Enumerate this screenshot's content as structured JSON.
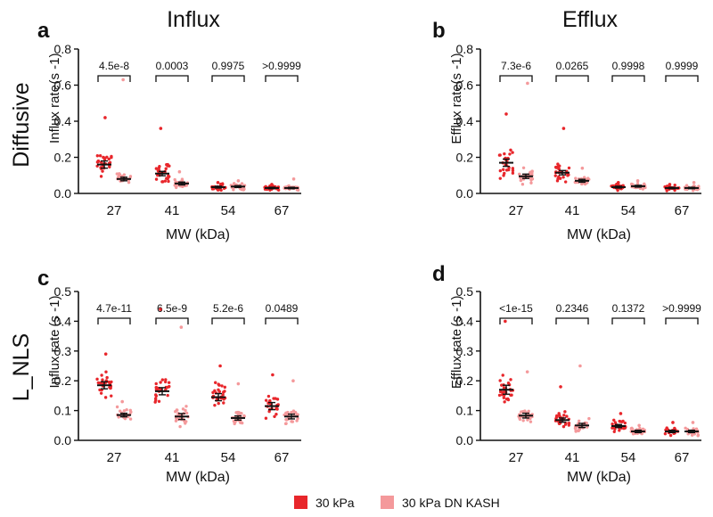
{
  "figure": {
    "column_titles": [
      "Influx",
      "Efflux"
    ],
    "row_labels": [
      "Diffusive",
      "L_NLS"
    ],
    "legend": [
      {
        "label": "30  kPa",
        "color": "#e8262b"
      },
      {
        "label": "30  kPa DN KASH",
        "color": "#f4999b"
      }
    ],
    "colors": {
      "series1": "#e8262b",
      "series2": "#f4999b",
      "axis": "#111111",
      "mean_bar": "#111111"
    }
  },
  "chart_data": [
    {
      "panel": "a",
      "type": "scatter",
      "title": "Influx",
      "row": "Diffusive",
      "ylabel": "Influx  rate",
      "yunit": "(s -1)",
      "xlabel": "MW  (kDa)",
      "categories": [
        "27",
        "41",
        "54",
        "67"
      ],
      "ylim": [
        0,
        0.8
      ],
      "yticks": [
        0.0,
        0.2,
        0.4,
        0.6,
        0.8
      ],
      "yticklabels": [
        "0.0",
        "0.2",
        "0.4",
        "0.6",
        "0.8"
      ],
      "series": [
        {
          "name": "30  kPa",
          "means": [
            0.16,
            0.11,
            0.035,
            0.03
          ],
          "sems": [
            0.02,
            0.012,
            0.005,
            0.004
          ],
          "spreads": [
            0.1,
            0.07,
            0.02,
            0.015
          ],
          "max_points": [
            0.42,
            0.36,
            0.06,
            0.05
          ]
        },
        {
          "name": "30  kPa DN KASH",
          "means": [
            0.08,
            0.055,
            0.038,
            0.03
          ],
          "sems": [
            0.01,
            0.008,
            0.005,
            0.004
          ],
          "spreads": [
            0.035,
            0.025,
            0.02,
            0.015
          ],
          "max_points": [
            0.63,
            0.12,
            0.07,
            0.08
          ]
        }
      ],
      "pvalues": [
        "4.5e-8",
        "0.0003",
        "0.9975",
        ">0.9999"
      ]
    },
    {
      "panel": "b",
      "type": "scatter",
      "title": "Efflux",
      "row": "Diffusive",
      "ylabel": "Efflux  rate",
      "yunit": "(s -1)",
      "xlabel": "MW  (kDa)",
      "categories": [
        "27",
        "41",
        "54",
        "67"
      ],
      "ylim": [
        0,
        0.8
      ],
      "yticks": [
        0.0,
        0.2,
        0.4,
        0.6,
        0.8
      ],
      "yticklabels": [
        "0.0",
        "0.2",
        "0.4",
        "0.6",
        "0.8"
      ],
      "series": [
        {
          "name": "30  kPa",
          "means": [
            0.17,
            0.115,
            0.035,
            0.03
          ],
          "sems": [
            0.02,
            0.012,
            0.005,
            0.004
          ],
          "spreads": [
            0.1,
            0.06,
            0.02,
            0.015
          ],
          "max_points": [
            0.44,
            0.36,
            0.06,
            0.05
          ]
        },
        {
          "name": "30  kPa DN KASH",
          "means": [
            0.095,
            0.07,
            0.04,
            0.03
          ],
          "sems": [
            0.012,
            0.008,
            0.005,
            0.004
          ],
          "spreads": [
            0.045,
            0.03,
            0.02,
            0.015
          ],
          "max_points": [
            0.61,
            0.14,
            0.07,
            0.06
          ]
        }
      ],
      "pvalues": [
        "7.3e-6",
        "0.0265",
        "0.9998",
        "0.9999"
      ]
    },
    {
      "panel": "c",
      "type": "scatter",
      "title": "",
      "row": "L_NLS",
      "ylabel": "Influx  rate",
      "yunit": "(s -1)",
      "xlabel": "MW  (kDa)",
      "categories": [
        "27",
        "41",
        "54",
        "67"
      ],
      "ylim": [
        0,
        0.5
      ],
      "yticks": [
        0.0,
        0.1,
        0.2,
        0.3,
        0.4,
        0.5
      ],
      "yticklabels": [
        "0.0",
        "0.1",
        "0.2",
        "0.3",
        "0.4",
        "0.5"
      ],
      "series": [
        {
          "name": "30  kPa",
          "means": [
            0.185,
            0.165,
            0.145,
            0.115
          ],
          "sems": [
            0.012,
            0.012,
            0.012,
            0.012
          ],
          "spreads": [
            0.05,
            0.06,
            0.05,
            0.05
          ],
          "max_points": [
            0.29,
            0.44,
            0.25,
            0.22
          ]
        },
        {
          "name": "30  kPa DN KASH",
          "means": [
            0.085,
            0.08,
            0.075,
            0.08
          ],
          "sems": [
            0.006,
            0.01,
            0.007,
            0.008
          ],
          "spreads": [
            0.025,
            0.04,
            0.03,
            0.035
          ],
          "max_points": [
            0.13,
            0.38,
            0.19,
            0.2
          ]
        }
      ],
      "pvalues": [
        "4.7e-11",
        "6.5e-9",
        "5.2e-6",
        "0.0489"
      ]
    },
    {
      "panel": "d",
      "type": "scatter",
      "title": "",
      "row": "L_NLS",
      "ylabel": "Efflux  rate",
      "yunit": "(s -1)",
      "xlabel": "MW  (kDa)",
      "categories": [
        "27",
        "41",
        "54",
        "67"
      ],
      "ylim": [
        0,
        0.5
      ],
      "yticks": [
        0.0,
        0.1,
        0.2,
        0.3,
        0.4,
        0.5
      ],
      "yticklabels": [
        "0.0",
        "0.1",
        "0.2",
        "0.3",
        "0.4",
        "0.5"
      ],
      "series": [
        {
          "name": "30  kPa",
          "means": [
            0.17,
            0.068,
            0.048,
            0.03
          ],
          "sems": [
            0.015,
            0.007,
            0.005,
            0.004
          ],
          "spreads": [
            0.06,
            0.03,
            0.02,
            0.015
          ],
          "max_points": [
            0.4,
            0.18,
            0.09,
            0.06
          ]
        },
        {
          "name": "30  kPa DN KASH",
          "means": [
            0.083,
            0.05,
            0.03,
            0.03
          ],
          "sems": [
            0.008,
            0.007,
            0.004,
            0.004
          ],
          "spreads": [
            0.03,
            0.025,
            0.012,
            0.015
          ],
          "max_points": [
            0.23,
            0.25,
            0.05,
            0.06
          ]
        }
      ],
      "pvalues": [
        "<1e-15",
        "0.2346",
        "0.1372",
        ">0.9999"
      ]
    }
  ]
}
